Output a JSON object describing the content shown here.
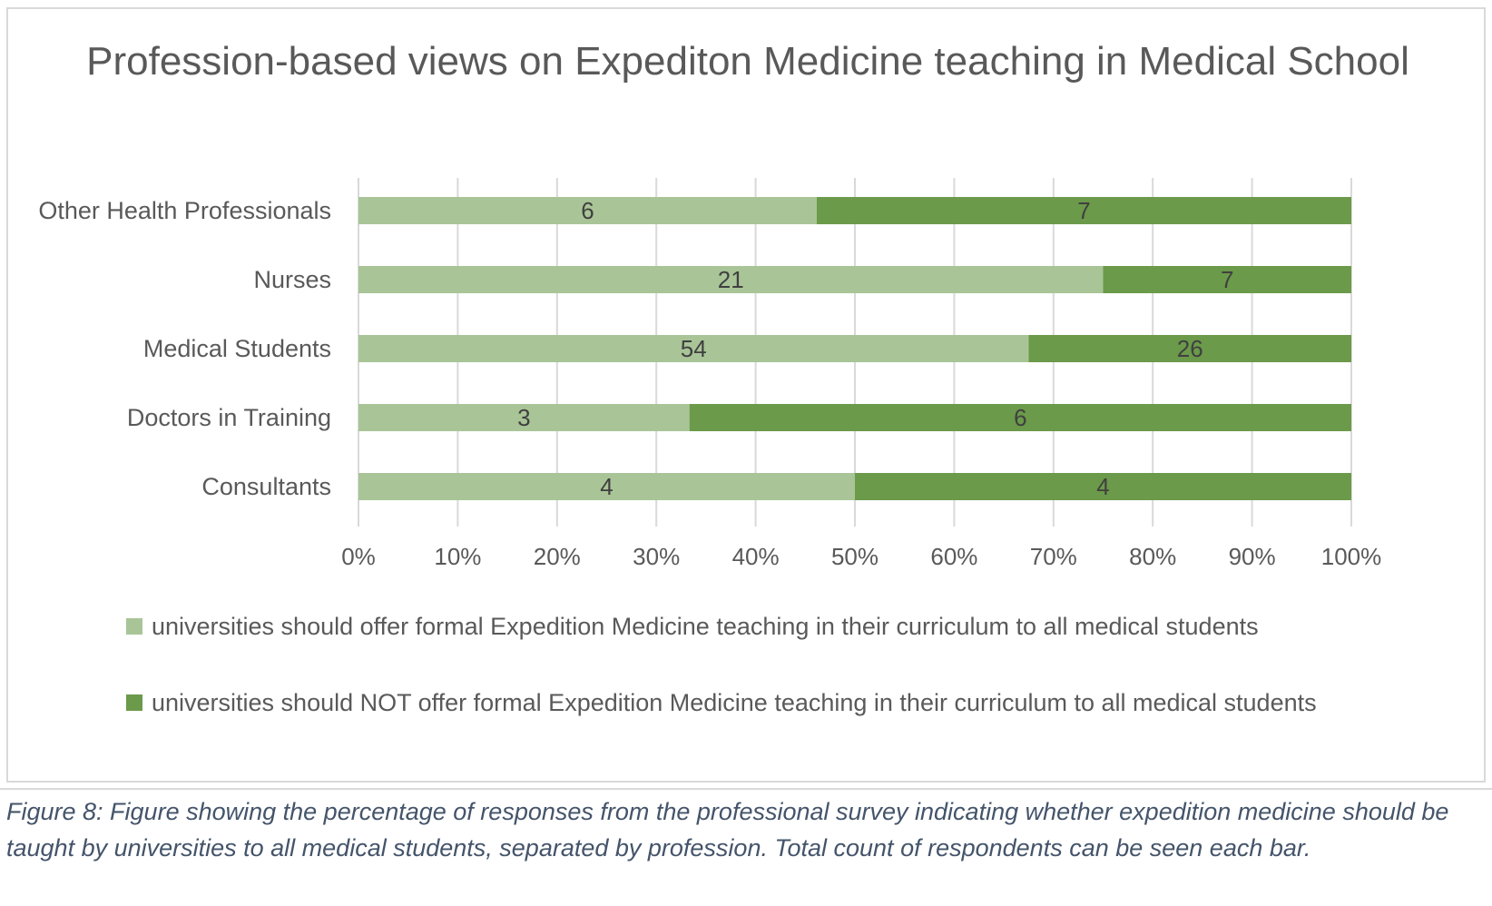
{
  "chart_data": {
    "type": "bar",
    "orientation": "horizontal",
    "stacked": "percent",
    "title": "Profession-based views on Expediton Medicine teaching in Medical School",
    "categories": [
      "Other Health Professionals",
      "Nurses",
      "Medical Students",
      "Doctors in Training",
      "Consultants"
    ],
    "series": [
      {
        "name": "universities should offer formal Expedition Medicine teaching in their curriculum to all medical students",
        "values": [
          6,
          21,
          54,
          3,
          4
        ],
        "color": "#a9c597"
      },
      {
        "name": "universities should NOT offer formal Expedition Medicine teaching in their curriculum to all medical students",
        "values": [
          7,
          7,
          26,
          6,
          4
        ],
        "color": "#6b9a4a"
      }
    ],
    "x_ticks": [
      "0%",
      "10%",
      "20%",
      "30%",
      "40%",
      "50%",
      "60%",
      "70%",
      "80%",
      "90%",
      "100%"
    ],
    "xlim": [
      0,
      100
    ],
    "grid": "vertical",
    "legend_position": "bottom"
  },
  "caption": "Figure 8: Figure showing the percentage of responses from the professional survey indicating whether expedition medicine should be taught by universities to all medical students, separated by profession. Total count of respondents can be seen each bar."
}
